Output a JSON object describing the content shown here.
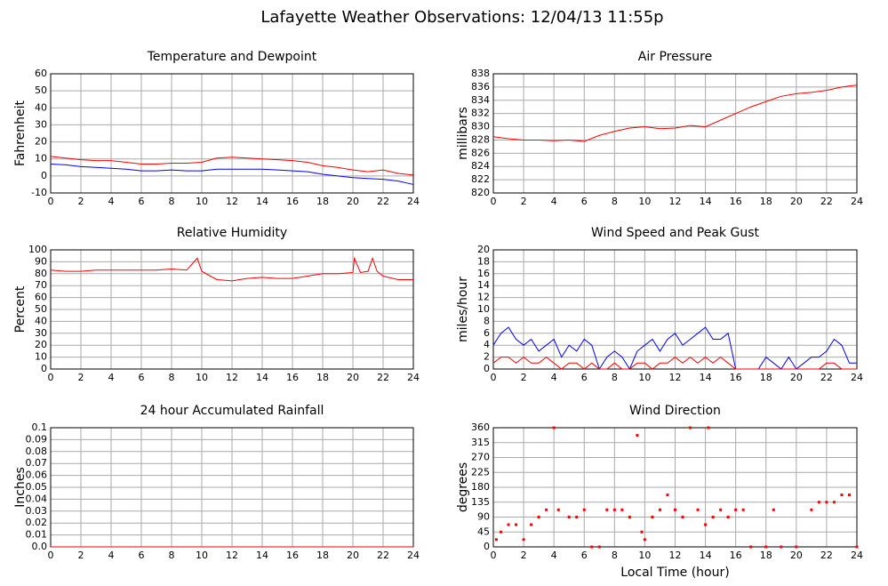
{
  "title": "Lafayette Weather Observations: 12/04/13 11:55p",
  "chart_data": [
    {
      "type": "line",
      "title": "Temperature and Dewpoint",
      "ylabel": "Fahrenheit",
      "grid": true,
      "xlim": [
        0,
        24
      ],
      "xticks": [
        0,
        2,
        4,
        6,
        8,
        10,
        12,
        14,
        16,
        18,
        20,
        22,
        24
      ],
      "ylim": [
        -10,
        60
      ],
      "yticks": [
        -10,
        0,
        10,
        20,
        30,
        40,
        50,
        60
      ],
      "x": [
        0,
        1,
        2,
        3,
        4,
        5,
        6,
        7,
        8,
        9,
        10,
        11,
        12,
        13,
        14,
        15,
        16,
        17,
        18,
        19,
        20,
        21,
        22,
        23,
        24
      ],
      "series": [
        {
          "color": "#ff0000",
          "values": [
            11.5,
            10.5,
            9.5,
            9,
            9,
            8,
            7,
            7,
            7.5,
            7.5,
            8,
            10.5,
            11,
            10.5,
            10,
            9.5,
            9,
            8,
            6,
            5,
            3.5,
            2.5,
            3.5,
            1.5,
            0.5
          ]
        },
        {
          "color": "#0000ff",
          "values": [
            7,
            6.5,
            5.5,
            5,
            4.5,
            4,
            3,
            3,
            3.5,
            3,
            3,
            4,
            4,
            4,
            4,
            3.5,
            3,
            2.5,
            1,
            0,
            -1,
            -1.5,
            -2,
            -3,
            -5
          ]
        }
      ]
    },
    {
      "type": "line",
      "title": "Air Pressure",
      "ylabel": "millibars",
      "grid": true,
      "xlim": [
        0,
        24
      ],
      "xticks": [
        0,
        2,
        4,
        6,
        8,
        10,
        12,
        14,
        16,
        18,
        20,
        22,
        24
      ],
      "ylim": [
        820,
        838
      ],
      "yticks": [
        820,
        822,
        824,
        826,
        828,
        830,
        832,
        834,
        836,
        838
      ],
      "x": [
        0,
        1,
        2,
        3,
        4,
        5,
        6,
        7,
        8,
        9,
        10,
        11,
        12,
        13,
        14,
        15,
        16,
        17,
        18,
        19,
        20,
        21,
        22,
        23,
        24
      ],
      "series": [
        {
          "color": "#ff0000",
          "values": [
            828.5,
            828.2,
            828,
            828,
            827.9,
            828,
            827.8,
            828.7,
            829.3,
            829.8,
            830,
            829.7,
            829.8,
            830.2,
            830,
            831,
            832,
            833,
            833.8,
            834.6,
            835,
            835.2,
            835.5,
            836,
            836.3
          ]
        }
      ]
    },
    {
      "type": "line",
      "title": "Relative Humidity",
      "ylabel": "Percent",
      "grid": true,
      "xlim": [
        0,
        24
      ],
      "xticks": [
        0,
        2,
        4,
        6,
        8,
        10,
        12,
        14,
        16,
        18,
        20,
        22,
        24
      ],
      "ylim": [
        0,
        100
      ],
      "yticks": [
        0,
        10,
        20,
        30,
        40,
        50,
        60,
        70,
        80,
        90,
        100
      ],
      "x": [
        0,
        1,
        2,
        3,
        4,
        5,
        6,
        7,
        8,
        9,
        9.7,
        10,
        11,
        12,
        13,
        14,
        15,
        16,
        17,
        18,
        19,
        20,
        20.1,
        20.5,
        21,
        21.3,
        21.6,
        22,
        23,
        24
      ],
      "series": [
        {
          "color": "#ff0000",
          "values": [
            83,
            82,
            82,
            83,
            83,
            83,
            83,
            83,
            84,
            83,
            93,
            82,
            75,
            74,
            76,
            77,
            76,
            76,
            78,
            80,
            80,
            81,
            93,
            81,
            82,
            93,
            82,
            78,
            75,
            75
          ]
        }
      ]
    },
    {
      "type": "line",
      "title": "Wind Speed and Peak Gust",
      "ylabel": "miles/hour",
      "grid": true,
      "xlim": [
        0,
        24
      ],
      "xticks": [
        0,
        2,
        4,
        6,
        8,
        10,
        12,
        14,
        16,
        18,
        20,
        22,
        24
      ],
      "ylim": [
        0,
        20
      ],
      "yticks": [
        0,
        2,
        4,
        6,
        8,
        10,
        12,
        14,
        16,
        18,
        20
      ],
      "x": [
        0,
        0.5,
        1,
        1.5,
        2,
        2.5,
        3,
        3.5,
        4,
        4.5,
        5,
        5.5,
        6,
        6.5,
        7,
        7.5,
        8,
        8.5,
        9,
        9.5,
        10,
        10.5,
        11,
        11.5,
        12,
        12.5,
        13,
        13.5,
        14,
        14.5,
        15,
        15.5,
        16,
        16.5,
        17,
        17.5,
        18,
        18.5,
        19,
        19.5,
        20,
        20.5,
        21,
        21.5,
        22,
        22.5,
        23,
        23.5,
        24
      ],
      "series": [
        {
          "color": "#0000ff",
          "values": [
            4,
            6,
            7,
            5,
            4,
            5,
            3,
            4,
            5,
            2,
            4,
            3,
            5,
            4,
            0,
            2,
            3,
            2,
            0,
            3,
            4,
            5,
            3,
            5,
            6,
            4,
            5,
            6,
            7,
            5,
            5,
            6,
            0,
            0,
            0,
            0,
            2,
            1,
            0,
            2,
            0,
            1,
            2,
            2,
            3,
            5,
            4,
            1,
            1
          ]
        },
        {
          "color": "#ff0000",
          "values": [
            1,
            2,
            2,
            1,
            2,
            1,
            1,
            2,
            1,
            0,
            1,
            1,
            0,
            1,
            0,
            0,
            1,
            0,
            0,
            1,
            1,
            0,
            1,
            1,
            2,
            1,
            2,
            1,
            2,
            1,
            2,
            1,
            0,
            0,
            0,
            0,
            0,
            0,
            0,
            0,
            0,
            0,
            0,
            0,
            1,
            1,
            0,
            0,
            0
          ]
        }
      ]
    },
    {
      "type": "line",
      "title": "24 hour Accumulated Rainfall",
      "ylabel": "Inches",
      "grid": true,
      "xlim": [
        0,
        24
      ],
      "xticks": [
        0,
        2,
        4,
        6,
        8,
        10,
        12,
        14,
        16,
        18,
        20,
        22,
        24
      ],
      "ylim": [
        0,
        0.1
      ],
      "yticks": [
        {
          "value": 0,
          "label": "0.0"
        },
        0.01,
        0.02,
        0.03,
        0.04,
        0.05,
        0.06,
        0.07,
        0.08,
        0.09,
        0.1
      ],
      "x": [
        0,
        24
      ],
      "series": [
        {
          "color": "#ff0000",
          "values": [
            0,
            0
          ]
        }
      ]
    },
    {
      "type": "scatter",
      "title": "Wind Direction",
      "ylabel": "degrees",
      "xlabel": "Local Time (hour)",
      "grid": true,
      "xlim": [
        0,
        24
      ],
      "xticks": [
        0,
        2,
        4,
        6,
        8,
        10,
        12,
        14,
        16,
        18,
        20,
        22,
        24
      ],
      "ylim": [
        0,
        360
      ],
      "yticks": [
        0,
        45,
        90,
        135,
        180,
        225,
        270,
        315,
        360
      ],
      "x": [
        0.2,
        0.5,
        1,
        1.5,
        2,
        2.5,
        3,
        3.5,
        4,
        4.3,
        5,
        5.5,
        6,
        6.5,
        7,
        7.5,
        8,
        8.5,
        9,
        9.5,
        9.8,
        10,
        10.5,
        11,
        11.5,
        12,
        12.5,
        13,
        13.5,
        14,
        14.2,
        14.5,
        15,
        15.5,
        16,
        16.5,
        17,
        18,
        18.5,
        19,
        20,
        21,
        21.5,
        22,
        22.5,
        23,
        23.5,
        24
      ],
      "series": [
        {
          "color": "#ff0000",
          "values": [
            22,
            45,
            67,
            67,
            22,
            67,
            90,
            112,
            360,
            112,
            90,
            90,
            112,
            0,
            0,
            112,
            112,
            112,
            90,
            337,
            45,
            22,
            90,
            112,
            157,
            112,
            90,
            360,
            112,
            67,
            360,
            90,
            112,
            90,
            112,
            112,
            0,
            0,
            112,
            0,
            0,
            112,
            135,
            135,
            135,
            157,
            157,
            0
          ]
        }
      ]
    }
  ]
}
